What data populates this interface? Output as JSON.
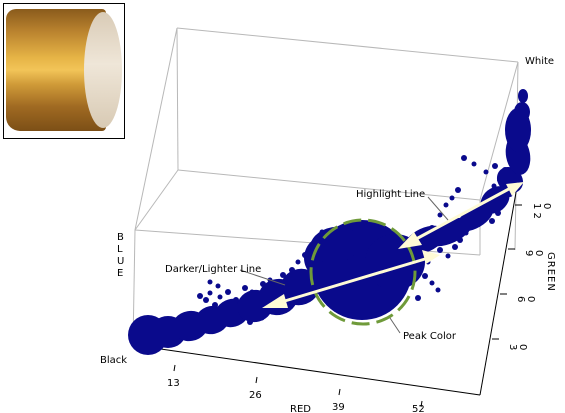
{
  "thumbnail": {
    "description_icon": "orange-cylinder-photo"
  },
  "labels": {
    "white": "White",
    "black": "Black",
    "highlight_line": "Highlight Line",
    "darker_lighter_line": "Darker/Lighter Line",
    "peak_color": "Peak Color"
  },
  "axes": {
    "red": {
      "title": "RED",
      "ticks": [
        "13",
        "26",
        "39",
        "52"
      ]
    },
    "green": {
      "title": "GREEN",
      "ticks": [
        "3\n0",
        "6\n0",
        "9\n0",
        "1 2\n0"
      ]
    },
    "blue": {
      "title": "BLUE"
    }
  },
  "colors": {
    "points": "#0a0a8c",
    "arrow": "#fffbd6",
    "peak_ring": "#6f9a3a"
  }
}
